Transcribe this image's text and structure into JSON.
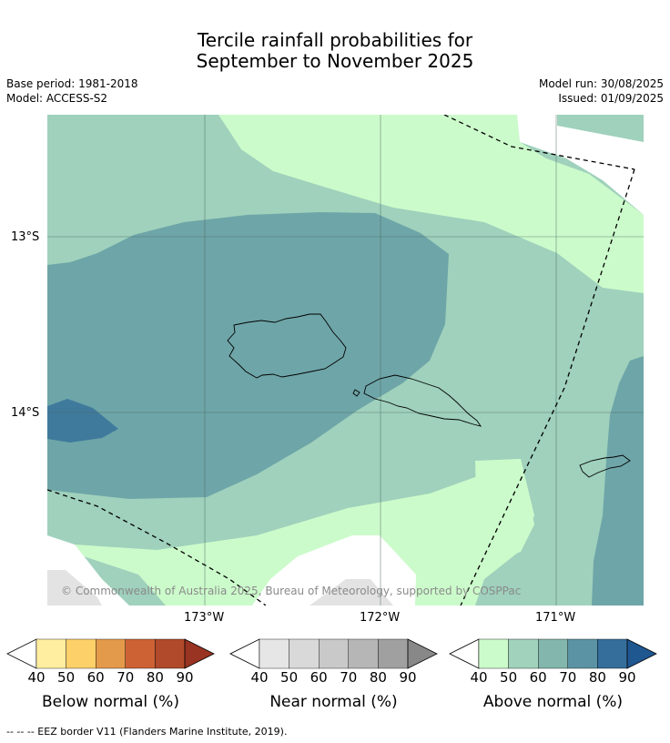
{
  "title": {
    "line1": "Tercile rainfall probabilities for",
    "line2": "September to November 2025"
  },
  "meta": {
    "base_period": "Base period: 1981-2018",
    "model": "Model: ACCESS-S2",
    "model_run": "Model run: 30/08/2025",
    "issued": "Issued: 01/09/2025"
  },
  "map": {
    "lat_labels": [
      "13°S",
      "14°S"
    ],
    "lon_labels": [
      "173°W",
      "172°W",
      "171°W"
    ],
    "copyright": "© Commonwealth of Australia 2025, Bureau of Meteorology, supported by COSPPac"
  },
  "colorbars": [
    {
      "title": "Below normal (%)",
      "ticks": [
        "40",
        "50",
        "60",
        "70",
        "80",
        "90"
      ],
      "colors": [
        "#ffffff",
        "#ffeda0",
        "#fed06a",
        "#e39a4a",
        "#cd6235",
        "#b04a2a",
        "#993322"
      ]
    },
    {
      "title": "Near normal (%)",
      "ticks": [
        "40",
        "50",
        "60",
        "70",
        "80",
        "90"
      ],
      "colors": [
        "#ffffff",
        "#e6e6e6",
        "#d9d9d9",
        "#c9c9c9",
        "#b6b6b6",
        "#a0a0a0",
        "#888888"
      ]
    },
    {
      "title": "Above normal (%)",
      "ticks": [
        "40",
        "50",
        "60",
        "70",
        "80",
        "90"
      ],
      "colors": [
        "#ffffff",
        "#ccfbcb",
        "#a0d2bc",
        "#83b7ad",
        "#5b93a4",
        "#356e9b",
        "#1f5790"
      ]
    }
  ],
  "footer": "--  --  -- EEZ border V11 (Flanders Marine Institute, 2019)."
}
